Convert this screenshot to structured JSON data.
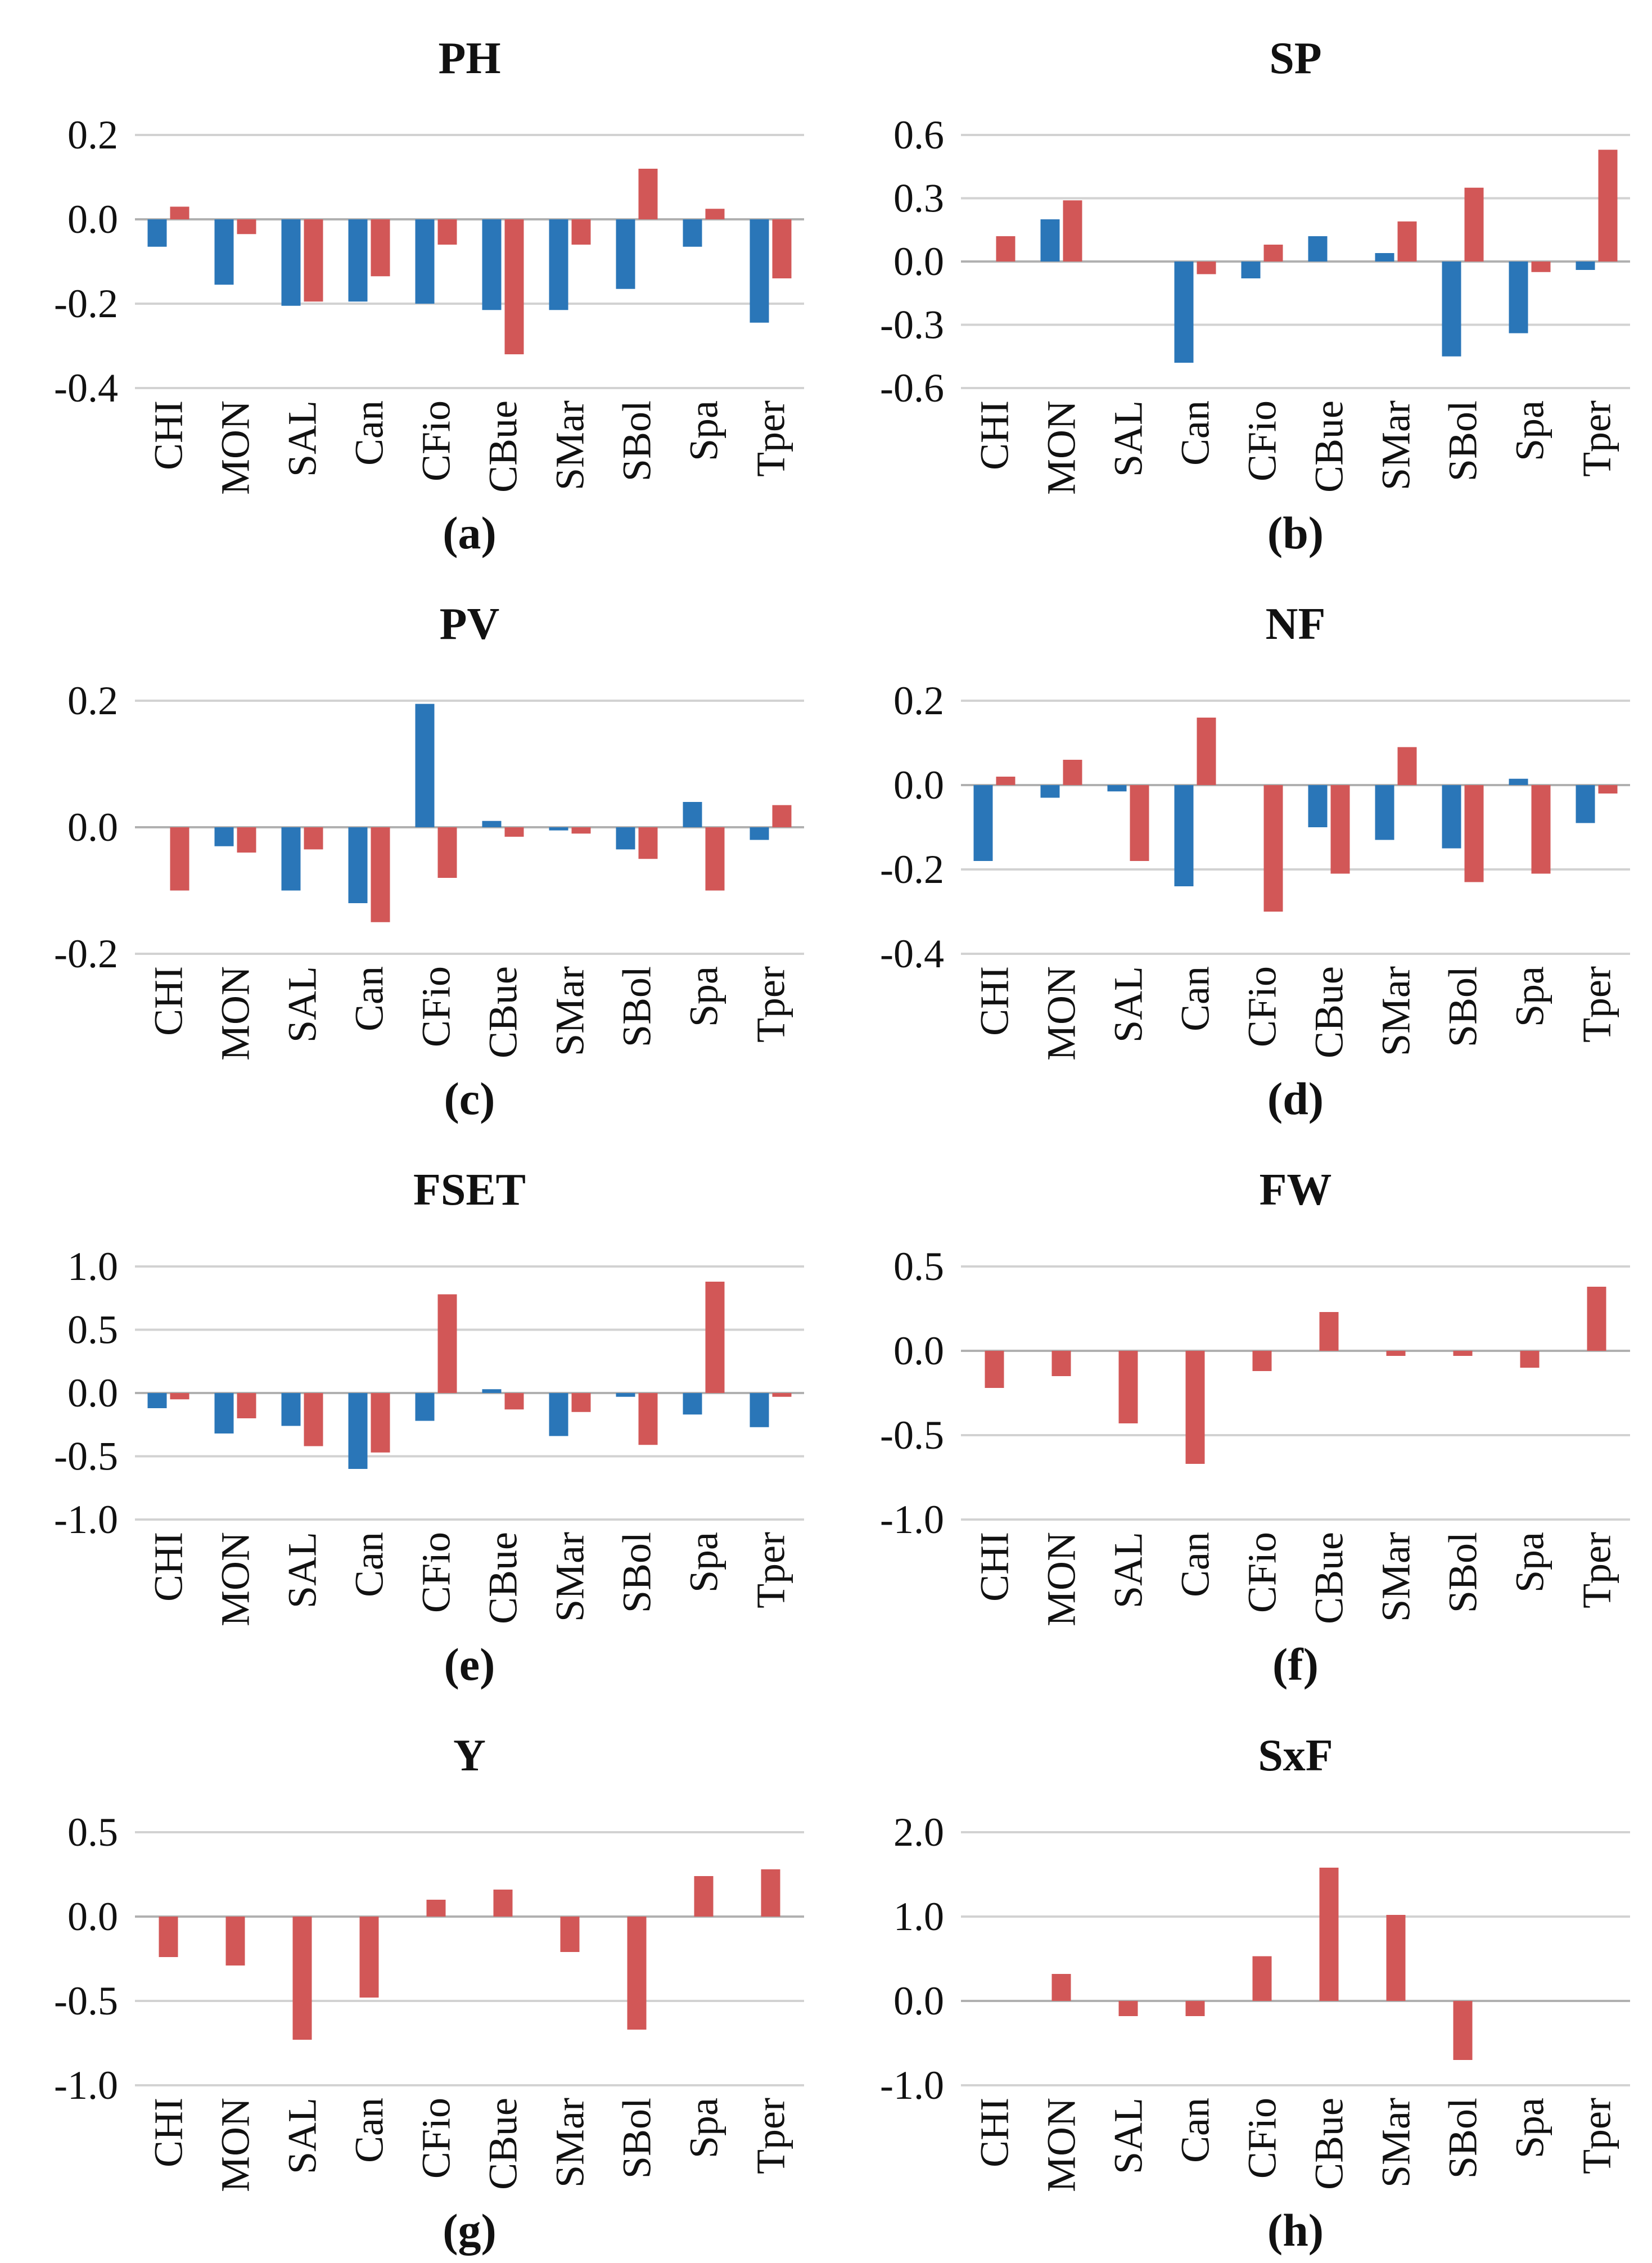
{
  "figure": {
    "series_colors": {
      "blue": "#2a76b8",
      "red": "#d25757"
    },
    "gridline_color": "#d2d2d2",
    "zero_line_color": "#b0b0b0"
  },
  "chart_data": [
    {
      "type": "bar",
      "title": "PH",
      "panel_label": "(a)",
      "categories": [
        "CHI",
        "MON",
        "SAL",
        "Can",
        "CFio",
        "CBue",
        "SMar",
        "SBol",
        "Spa",
        "Tper"
      ],
      "yticks": [
        "0.2",
        "0.0",
        "-0.2",
        "-0.4"
      ],
      "ylim": [
        -0.4,
        0.2
      ],
      "grid": true,
      "legend": "none",
      "series": [
        {
          "name": "blue",
          "color": "#2a76b8",
          "values": [
            -0.065,
            -0.155,
            -0.205,
            -0.195,
            -0.2,
            -0.215,
            -0.215,
            -0.165,
            -0.065,
            -0.245
          ]
        },
        {
          "name": "red",
          "color": "#d25757",
          "values": [
            0.03,
            -0.035,
            -0.195,
            -0.135,
            -0.06,
            -0.32,
            -0.06,
            0.12,
            0.025,
            -0.14
          ]
        }
      ]
    },
    {
      "type": "bar",
      "title": "SP",
      "panel_label": "(b)",
      "categories": [
        "CHI",
        "MON",
        "SAL",
        "Can",
        "CFio",
        "CBue",
        "SMar",
        "SBol",
        "Spa",
        "Tper"
      ],
      "yticks": [
        "0.6",
        "0.3",
        "0.0",
        "-0.3",
        "-0.6"
      ],
      "ylim": [
        -0.6,
        0.6
      ],
      "grid": true,
      "legend": "none",
      "series": [
        {
          "name": "blue",
          "color": "#2a76b8",
          "values": [
            0,
            0.2,
            0,
            -0.48,
            -0.08,
            0.12,
            0.04,
            -0.45,
            -0.34,
            -0.04
          ]
        },
        {
          "name": "red",
          "color": "#d25757",
          "values": [
            0.12,
            0.29,
            0,
            -0.06,
            0.08,
            0,
            0.19,
            0.35,
            -0.05,
            0.53
          ]
        }
      ]
    },
    {
      "type": "bar",
      "title": "PV",
      "panel_label": "(c)",
      "categories": [
        "CHI",
        "MON",
        "SAL",
        "Can",
        "CFio",
        "CBue",
        "SMar",
        "SBol",
        "Spa",
        "Tper"
      ],
      "yticks": [
        "0.2",
        "0.0",
        "-0.2"
      ],
      "ylim": [
        -0.2,
        0.2
      ],
      "grid": true,
      "legend": "none",
      "series": [
        {
          "name": "blue",
          "color": "#2a76b8",
          "values": [
            0,
            -0.03,
            -0.1,
            -0.12,
            0.195,
            0.01,
            -0.005,
            -0.035,
            0.04,
            -0.02
          ]
        },
        {
          "name": "red",
          "color": "#d25757",
          "values": [
            -0.1,
            -0.04,
            -0.035,
            -0.15,
            -0.08,
            -0.015,
            -0.01,
            -0.05,
            -0.1,
            0.035
          ]
        }
      ]
    },
    {
      "type": "bar",
      "title": "NF",
      "panel_label": "(d)",
      "categories": [
        "CHI",
        "MON",
        "SAL",
        "Can",
        "CFio",
        "CBue",
        "SMar",
        "SBol",
        "Spa",
        "Tper"
      ],
      "yticks": [
        "0.2",
        "0.0",
        "-0.2",
        "-0.4"
      ],
      "ylim": [
        -0.4,
        0.2
      ],
      "grid": true,
      "legend": "none",
      "series": [
        {
          "name": "blue",
          "color": "#2a76b8",
          "values": [
            -0.18,
            -0.03,
            -0.015,
            -0.24,
            0,
            -0.1,
            -0.13,
            -0.15,
            0.015,
            -0.09
          ]
        },
        {
          "name": "red",
          "color": "#d25757",
          "values": [
            0.02,
            0.06,
            -0.18,
            0.16,
            -0.3,
            -0.21,
            0.09,
            -0.23,
            -0.21,
            -0.02
          ]
        }
      ]
    },
    {
      "type": "bar",
      "title": "FSET",
      "panel_label": "(e)",
      "categories": [
        "CHI",
        "MON",
        "SAL",
        "Can",
        "CFio",
        "CBue",
        "SMar",
        "SBol",
        "Spa",
        "Tper"
      ],
      "yticks": [
        "1.0",
        "0.5",
        "0.0",
        "-0.5",
        "-1.0"
      ],
      "ylim": [
        -1.0,
        1.0
      ],
      "grid": true,
      "legend": "none",
      "series": [
        {
          "name": "blue",
          "color": "#2a76b8",
          "values": [
            -0.12,
            -0.32,
            -0.26,
            -0.6,
            -0.22,
            0.03,
            -0.34,
            -0.03,
            -0.17,
            -0.27
          ]
        },
        {
          "name": "red",
          "color": "#d25757",
          "values": [
            -0.05,
            -0.2,
            -0.42,
            -0.47,
            0.78,
            -0.13,
            -0.15,
            -0.41,
            0.88,
            -0.03
          ]
        }
      ]
    },
    {
      "type": "bar",
      "title": "FW",
      "panel_label": "(f)",
      "categories": [
        "CHI",
        "MON",
        "SAL",
        "Can",
        "CFio",
        "CBue",
        "SMar",
        "SBol",
        "Spa",
        "Tper"
      ],
      "yticks": [
        "0.5",
        "0.0",
        "-0.5",
        "-1.0"
      ],
      "ylim": [
        -1.0,
        0.5
      ],
      "grid": true,
      "legend": "none",
      "series": [
        {
          "name": "red",
          "color": "#d25757",
          "values": [
            -0.22,
            -0.15,
            -0.43,
            -0.67,
            -0.12,
            0.23,
            -0.03,
            -0.03,
            -0.1,
            0.38
          ]
        }
      ]
    },
    {
      "type": "bar",
      "title": "Y",
      "panel_label": "(g)",
      "categories": [
        "CHI",
        "MON",
        "SAL",
        "Can",
        "CFio",
        "CBue",
        "SMar",
        "SBol",
        "Spa",
        "Tper"
      ],
      "yticks": [
        "0.5",
        "0.0",
        "-0.5",
        "-1.0"
      ],
      "ylim": [
        -1.0,
        0.5
      ],
      "grid": true,
      "legend": "none",
      "series": [
        {
          "name": "red",
          "color": "#d25757",
          "values": [
            -0.24,
            -0.29,
            -0.73,
            -0.48,
            0.1,
            0.16,
            -0.21,
            -0.67,
            0.24,
            0.28
          ]
        }
      ]
    },
    {
      "type": "bar",
      "title": "SxF",
      "panel_label": "(h)",
      "categories": [
        "CHI",
        "MON",
        "SAL",
        "Can",
        "CFio",
        "CBue",
        "SMar",
        "SBol",
        "Spa",
        "Tper"
      ],
      "yticks": [
        "2.0",
        "1.0",
        "0.0",
        "-1.0"
      ],
      "ylim": [
        -1.0,
        2.0
      ],
      "grid": true,
      "legend": "none",
      "series": [
        {
          "name": "red",
          "color": "#d25757",
          "values": [
            0,
            0.32,
            -0.18,
            -0.18,
            0.53,
            1.58,
            1.02,
            -0.7,
            0,
            0
          ]
        }
      ]
    }
  ]
}
